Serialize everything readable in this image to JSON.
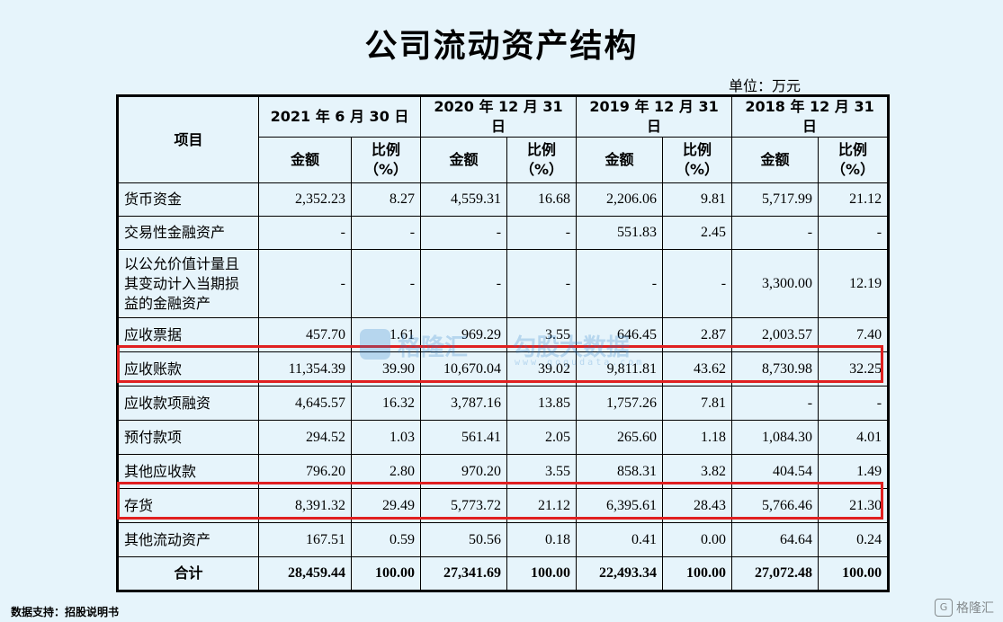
{
  "title": "公司流动资产结构",
  "unit": "单位：万元",
  "table": {
    "item_header": "项目",
    "periods": [
      "2021 年 6 月 30 日",
      "2020 年 12 月 31 日",
      "2019 年 12 月 31 日",
      "2018 年 12 月 31 日"
    ],
    "amount_header": "金额",
    "ratio_header_line1": "比例",
    "ratio_header_line2": "（%）",
    "rows": [
      {
        "label": "货币资金",
        "values": [
          "2,352.23",
          "8.27",
          "4,559.31",
          "16.68",
          "2,206.06",
          "9.81",
          "5,717.99",
          "21.12"
        ]
      },
      {
        "label": "交易性金融资产",
        "values": [
          "-",
          "-",
          "-",
          "-",
          "551.83",
          "2.45",
          "-",
          "-"
        ]
      },
      {
        "label": "以公允价值计量且其变动计入当期损益的金融资产",
        "values": [
          "-",
          "-",
          "-",
          "-",
          "-",
          "-",
          "3,300.00",
          "12.19"
        ]
      },
      {
        "label": "应收票据",
        "values": [
          "457.70",
          "1.61",
          "969.29",
          "3.55",
          "646.45",
          "2.87",
          "2,003.57",
          "7.40"
        ]
      },
      {
        "label": "应收账款",
        "values": [
          "11,354.39",
          "39.90",
          "10,670.04",
          "39.02",
          "9,811.81",
          "43.62",
          "8,730.98",
          "32.25"
        ]
      },
      {
        "label": "应收款项融资",
        "values": [
          "4,645.57",
          "16.32",
          "3,787.16",
          "13.85",
          "1,757.26",
          "7.81",
          "-",
          "-"
        ]
      },
      {
        "label": "预付款项",
        "values": [
          "294.52",
          "1.03",
          "561.41",
          "2.05",
          "265.60",
          "1.18",
          "1,084.30",
          "4.01"
        ]
      },
      {
        "label": "其他应收款",
        "values": [
          "796.20",
          "2.80",
          "970.20",
          "3.55",
          "858.31",
          "3.82",
          "404.54",
          "1.49"
        ]
      },
      {
        "label": "存货",
        "values": [
          "8,391.32",
          "29.49",
          "5,773.72",
          "21.12",
          "6,395.61",
          "28.43",
          "5,766.46",
          "21.30"
        ]
      },
      {
        "label": "其他流动资产",
        "values": [
          "167.51",
          "0.59",
          "50.56",
          "0.18",
          "0.41",
          "0.00",
          "64.64",
          "0.24"
        ]
      }
    ],
    "total": {
      "label": "合计",
      "values": [
        "28,459.44",
        "100.00",
        "27,341.69",
        "100.00",
        "22,493.34",
        "100.00",
        "27,072.48",
        "100.00"
      ]
    }
  },
  "highlighted_rows": [
    "应收账款",
    "存货"
  ],
  "highlight_color": "#e02020",
  "background_color": "#e6f4fb",
  "watermark": {
    "brand": "格隆汇",
    "text": "勾股大数据",
    "url": "www.gogudata.com"
  },
  "footer": {
    "source": "数据支持：招股说明书",
    "brand": "格隆汇",
    "brand_icon": "G"
  }
}
